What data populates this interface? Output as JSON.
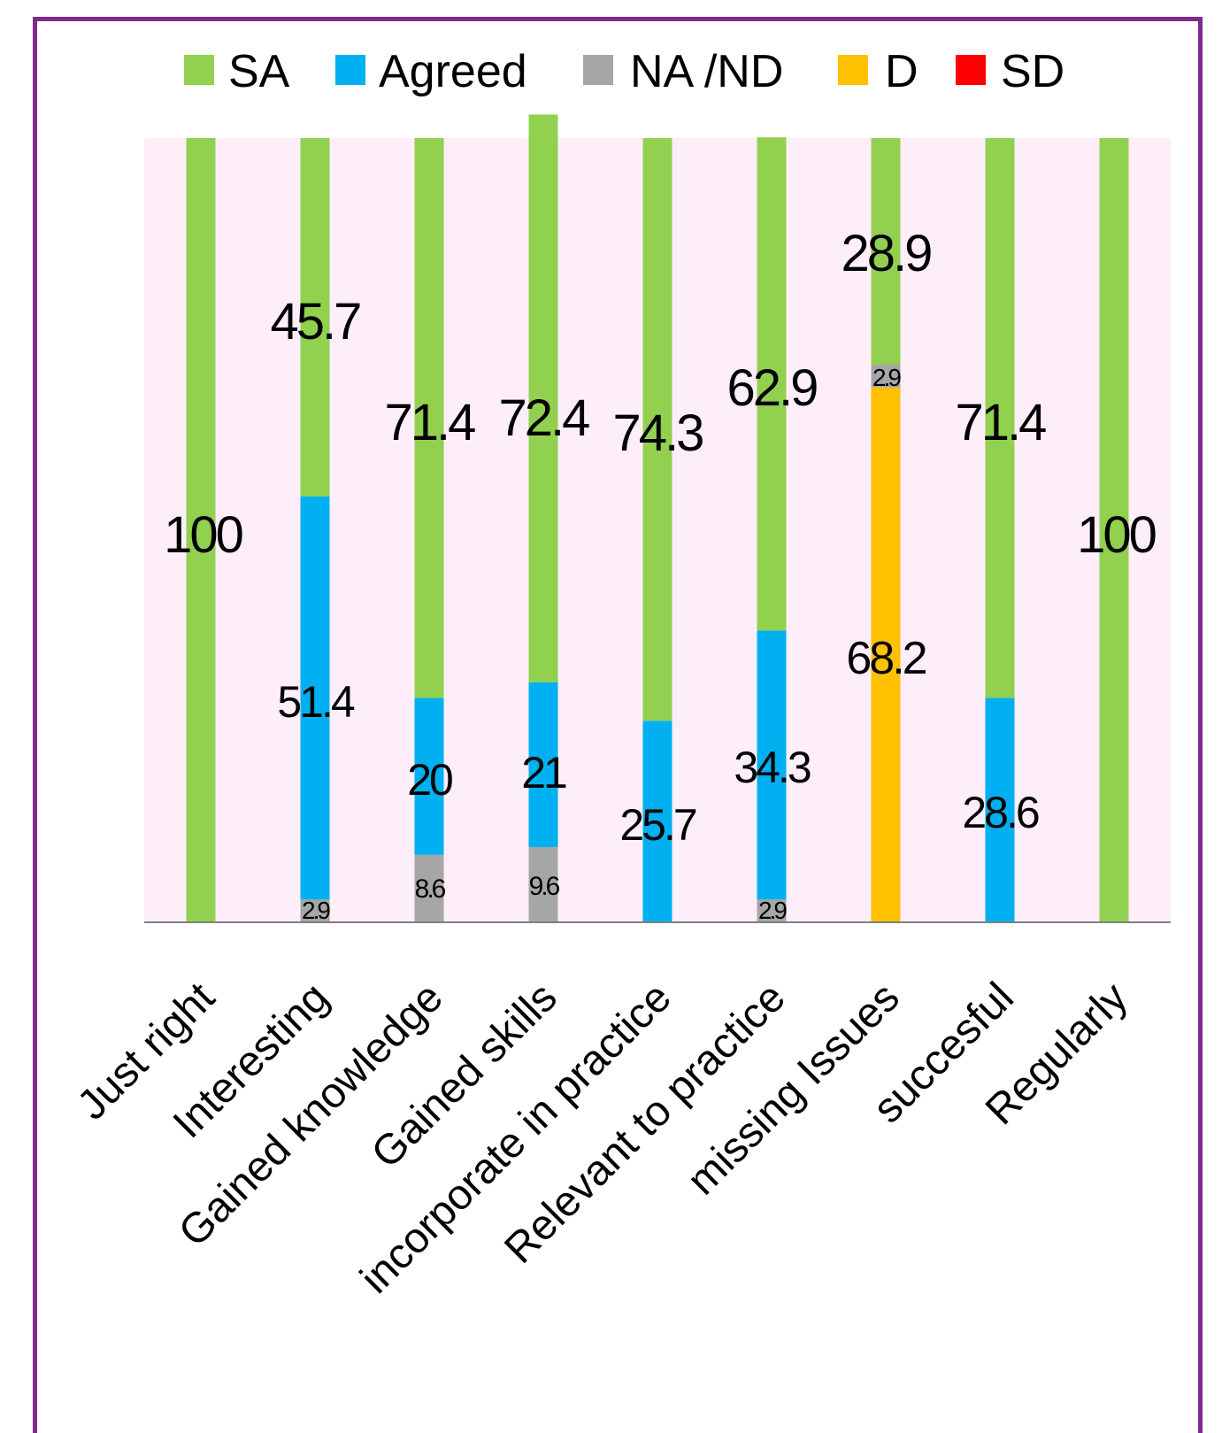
{
  "chart_data": {
    "type": "bar",
    "stacked": true,
    "categories": [
      "Just right",
      "Interesting",
      "Gained knowledge",
      "Gained skills",
      "incorporate in practice",
      "Relevant to practice",
      "missing Issues",
      "succesful",
      "Regularly"
    ],
    "series": [
      {
        "name": "SA",
        "color": "#92d050",
        "values": [
          100,
          45.7,
          71.4,
          72.4,
          74.3,
          62.9,
          28.9,
          71.4,
          100
        ]
      },
      {
        "name": "Agreed",
        "color": "#00b0f0",
        "values": [
          0,
          51.4,
          20,
          21,
          25.7,
          34.3,
          0,
          28.6,
          0
        ]
      },
      {
        "name": "NA /ND",
        "color": "#a6a6a6",
        "values": [
          0,
          2.9,
          8.6,
          9.6,
          0,
          2.9,
          2.9,
          0,
          0
        ]
      },
      {
        "name": "D",
        "color": "#ffc000",
        "values": [
          0,
          0,
          0,
          0,
          0,
          0,
          68.2,
          0,
          0
        ]
      },
      {
        "name": "SD",
        "color": "#ff0000",
        "values": [
          0,
          0,
          0,
          0,
          0,
          0,
          0,
          0,
          0
        ]
      }
    ],
    "labels": {
      "SA": [
        "100",
        "45.7",
        "71.4",
        "72.4",
        "74.3",
        "62.9",
        "28.9",
        "71.4",
        "100"
      ],
      "Agreed": [
        "",
        "51.4",
        "20",
        "21",
        "25.7",
        "34.3",
        "",
        "28.6",
        ""
      ],
      "NA /ND": [
        "",
        "2.9",
        "8.6",
        "9.6",
        "",
        "2.9",
        "2.9",
        "",
        ""
      ],
      "D": [
        "",
        "",
        "",
        "",
        "",
        "",
        "68.2",
        "",
        ""
      ]
    },
    "ylim": [
      0,
      100
    ],
    "plot_background": "#fdeefa",
    "frame_color": "#7e2a8c",
    "legend_position": "top",
    "grid": false
  }
}
